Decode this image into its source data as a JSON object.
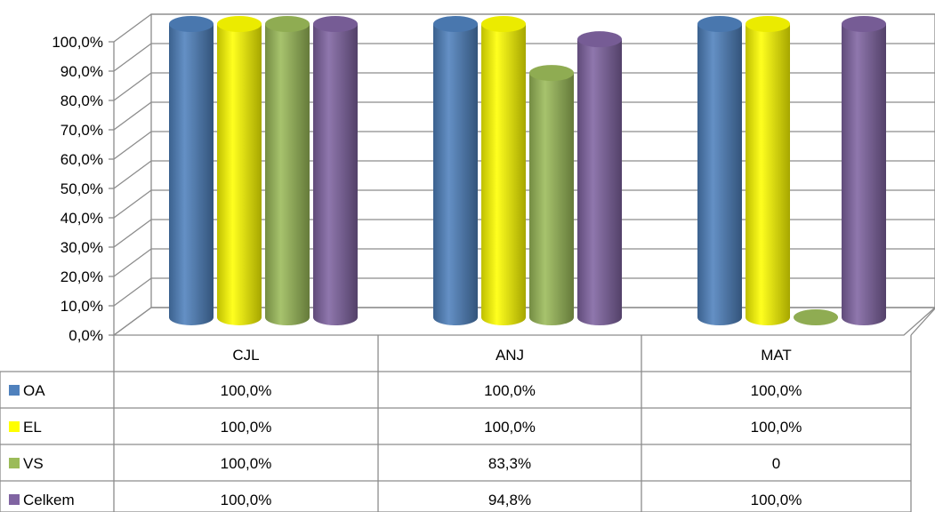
{
  "chart_data": {
    "type": "bar",
    "categories": [
      "CJL",
      "ANJ",
      "MAT"
    ],
    "series": [
      {
        "name": "OA",
        "values": [
          100.0,
          100.0,
          100.0
        ],
        "labels": [
          "100,0%",
          "100,0%",
          "100,0%"
        ],
        "color": "#4f81bd"
      },
      {
        "name": "EL",
        "values": [
          100.0,
          100.0,
          100.0
        ],
        "labels": [
          "100,0%",
          "100,0%",
          "100,0%"
        ],
        "color": "#ffff00"
      },
      {
        "name": "VS",
        "values": [
          100.0,
          83.3,
          0
        ],
        "labels": [
          "100,0%",
          "83,3%",
          "0"
        ],
        "color": "#9bbb59"
      },
      {
        "name": "Celkem",
        "values": [
          100.0,
          94.8,
          100.0
        ],
        "labels": [
          "100,0%",
          "94,8%",
          "100,0%"
        ],
        "color": "#8064a2"
      }
    ],
    "y_ticks": [
      "0,0%",
      "10,0%",
      "20,0%",
      "30,0%",
      "40,0%",
      "50,0%",
      "60,0%",
      "70,0%",
      "80,0%",
      "90,0%",
      "100,0%"
    ],
    "ylim": [
      0,
      100
    ],
    "grid": true,
    "legend": "data-table",
    "title": "",
    "xlabel": "",
    "ylabel": ""
  }
}
